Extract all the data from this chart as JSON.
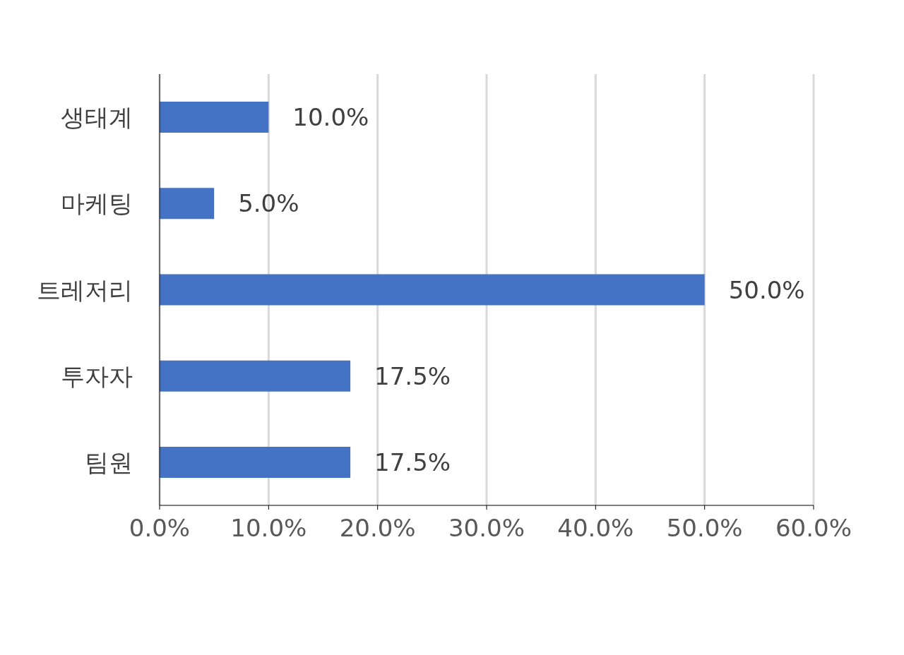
{
  "chart_data": {
    "type": "bar",
    "orientation": "horizontal",
    "categories": [
      "생태계",
      "마케팅",
      "트레저리",
      "투자자",
      "팀원"
    ],
    "values": [
      10,
      5,
      50,
      17.5,
      17.5
    ],
    "value_labels": [
      "10.0%",
      "5.0%",
      "50.0%",
      "17.5%",
      "17.5%"
    ],
    "color": "#4472c4",
    "xlim": [
      0,
      60
    ],
    "xticks": [
      {
        "value": 0,
        "label": "0.0%"
      },
      {
        "value": 10,
        "label": "10.0%"
      },
      {
        "value": 20,
        "label": "20.0%"
      },
      {
        "value": 30,
        "label": "30.0%"
      },
      {
        "value": 40,
        "label": "40.0%"
      },
      {
        "value": 50,
        "label": "50.0%"
      },
      {
        "value": 60,
        "label": "60.0%"
      }
    ],
    "grid": "x"
  }
}
